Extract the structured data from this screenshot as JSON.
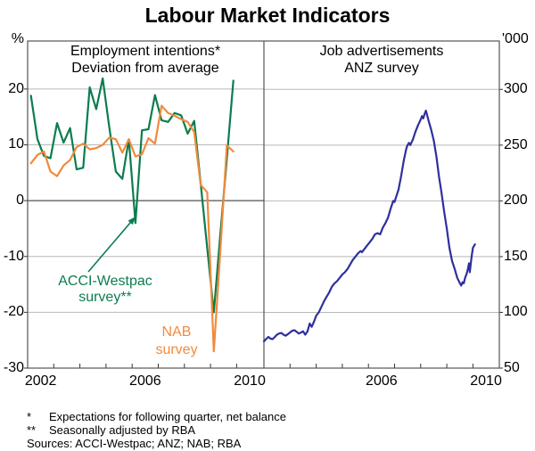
{
  "title": "Labour Market Indicators",
  "panels": {
    "left": {
      "heading1": "Employment intentions*",
      "heading2": "Deviation from average",
      "unit": "%",
      "y_tick_values": [
        20,
        10,
        0,
        -10,
        -20,
        -30
      ],
      "x_labels": [
        "2002",
        "2006",
        "2010"
      ],
      "x_label_years": [
        2002.5,
        2006.5,
        2010.5
      ]
    },
    "right": {
      "heading1": "Job advertisements",
      "heading2": "ANZ survey",
      "unit": "'000",
      "y_tick_values": [
        300,
        250,
        200,
        150,
        100,
        50
      ],
      "x_labels": [
        "2006",
        "2010"
      ],
      "x_label_years": [
        2006.5,
        2010.5
      ]
    }
  },
  "annotations": {
    "acci_line1": "ACCI-Westpac",
    "acci_line2": "survey**",
    "nab_line1": "NAB",
    "nab_line2": "survey"
  },
  "footnotes": [
    {
      "marker": "*",
      "text": "Expectations for following quarter, net balance"
    },
    {
      "marker": "**",
      "text": "Seasonally adjusted by RBA"
    }
  ],
  "sources": "Sources: ACCI-Westpac; ANZ; NAB; RBA",
  "colors": {
    "acci": "#0b7d4e",
    "nab": "#f18a3d",
    "anz": "#2f2f9f",
    "grid": "#b8b8b8",
    "zero": "#6e6e6e",
    "frame": "#555555",
    "tick": "#333333"
  },
  "chart_data": [
    {
      "type": "line",
      "panel": "left",
      "title": "Employment intentions, deviation from average (%)",
      "xlim": [
        2002,
        2011.04
      ],
      "ylim": [
        -30,
        28.6
      ],
      "grid_values": [
        20,
        10,
        -10,
        -20
      ],
      "zero_line": 0,
      "x_tick_years": [
        2003,
        2004,
        2005,
        2006,
        2007,
        2008,
        2009,
        2010
      ],
      "series": [
        {
          "name": "ACCI-Westpac survey**",
          "color_key": "acci",
          "x_start": 2002.125,
          "x_step": 0.25,
          "values": [
            18.8,
            11.0,
            8.0,
            7.6,
            13.9,
            10.4,
            13.0,
            5.6,
            5.9,
            20.3,
            16.4,
            21.9,
            13.1,
            5.2,
            3.9,
            11.0,
            -4.0,
            12.6,
            12.8,
            18.9,
            14.4,
            14.1,
            15.7,
            15.3,
            12.0,
            14.3,
            3.0,
            -8.5,
            -20.0,
            -6.0,
            7.5,
            21.5
          ]
        },
        {
          "name": "NAB survey",
          "color_key": "nab",
          "x_start": 2002.125,
          "x_step": 0.25,
          "values": [
            6.7,
            8.2,
            8.8,
            5.2,
            4.4,
            6.3,
            7.3,
            9.6,
            10.2,
            9.2,
            9.4,
            10.0,
            11.3,
            11.0,
            8.6,
            11.0,
            7.9,
            8.3,
            11.2,
            10.2,
            17.0,
            15.7,
            15.2,
            14.6,
            14.1,
            12.3,
            2.8,
            1.5,
            -27.0,
            -9.0,
            9.9,
            8.8
          ]
        }
      ]
    },
    {
      "type": "line",
      "panel": "right",
      "title": "Job advertisements, ANZ survey ('000)",
      "xlim": [
        2002,
        2011.01
      ],
      "ylim": [
        50,
        343.4
      ],
      "grid_values": [
        300,
        250,
        200,
        150,
        100
      ],
      "x_tick_years": [
        2003,
        2004,
        2005,
        2006,
        2007,
        2008,
        2009,
        2010
      ],
      "series": [
        {
          "name": "ANZ job advertisements",
          "color_key": "anz",
          "points": [
            [
              2002.0,
              74
            ],
            [
              2002.08,
              76
            ],
            [
              2002.17,
              78
            ],
            [
              2002.25,
              76.5
            ],
            [
              2002.33,
              76
            ],
            [
              2002.42,
              78
            ],
            [
              2002.5,
              80
            ],
            [
              2002.58,
              81
            ],
            [
              2002.67,
              81.5
            ],
            [
              2002.75,
              80
            ],
            [
              2002.83,
              79
            ],
            [
              2002.92,
              80.5
            ],
            [
              2003.0,
              82
            ],
            [
              2003.08,
              83.5
            ],
            [
              2003.17,
              84
            ],
            [
              2003.25,
              82.5
            ],
            [
              2003.33,
              81
            ],
            [
              2003.42,
              82
            ],
            [
              2003.5,
              83
            ],
            [
              2003.58,
              80
            ],
            [
              2003.67,
              83
            ],
            [
              2003.75,
              90
            ],
            [
              2003.83,
              87
            ],
            [
              2003.92,
              92
            ],
            [
              2004.0,
              97
            ],
            [
              2004.1,
              100
            ],
            [
              2004.2,
              105
            ],
            [
              2004.3,
              110
            ],
            [
              2004.4,
              114
            ],
            [
              2004.5,
              118
            ],
            [
              2004.6,
              123
            ],
            [
              2004.7,
              126
            ],
            [
              2004.8,
              128
            ],
            [
              2004.9,
              131
            ],
            [
              2005.0,
              134
            ],
            [
              2005.1,
              136
            ],
            [
              2005.2,
              139
            ],
            [
              2005.3,
              143
            ],
            [
              2005.4,
              147
            ],
            [
              2005.5,
              150
            ],
            [
              2005.6,
              153
            ],
            [
              2005.7,
              155
            ],
            [
              2005.75,
              154
            ],
            [
              2005.85,
              157
            ],
            [
              2005.95,
              160
            ],
            [
              2006.05,
              163
            ],
            [
              2006.15,
              166
            ],
            [
              2006.25,
              170
            ],
            [
              2006.35,
              171
            ],
            [
              2006.45,
              170
            ],
            [
              2006.55,
              176
            ],
            [
              2006.65,
              180
            ],
            [
              2006.75,
              185
            ],
            [
              2006.85,
              193
            ],
            [
              2006.95,
              200
            ],
            [
              2007.0,
              199
            ],
            [
              2007.05,
              203
            ],
            [
              2007.15,
              210
            ],
            [
              2007.25,
              222
            ],
            [
              2007.35,
              236
            ],
            [
              2007.45,
              247
            ],
            [
              2007.5,
              250
            ],
            [
              2007.55,
              252
            ],
            [
              2007.6,
              250
            ],
            [
              2007.7,
              255
            ],
            [
              2007.8,
              262
            ],
            [
              2007.9,
              268
            ],
            [
              2008.0,
              273
            ],
            [
              2008.05,
              276
            ],
            [
              2008.1,
              274
            ],
            [
              2008.15,
              278
            ],
            [
              2008.2,
              281
            ],
            [
              2008.3,
              272
            ],
            [
              2008.4,
              264
            ],
            [
              2008.5,
              254
            ],
            [
              2008.6,
              240
            ],
            [
              2008.7,
              222
            ],
            [
              2008.8,
              207
            ],
            [
              2008.9,
              190
            ],
            [
              2009.0,
              175
            ],
            [
              2009.1,
              158
            ],
            [
              2009.2,
              146
            ],
            [
              2009.3,
              139
            ],
            [
              2009.4,
              131
            ],
            [
              2009.5,
              126
            ],
            [
              2009.55,
              124
            ],
            [
              2009.6,
              127
            ],
            [
              2009.65,
              126
            ],
            [
              2009.7,
              131
            ],
            [
              2009.75,
              134
            ],
            [
              2009.8,
              138
            ],
            [
              2009.85,
              144
            ],
            [
              2009.88,
              136
            ],
            [
              2009.95,
              150
            ],
            [
              2010.0,
              158
            ],
            [
              2010.08,
              161
            ]
          ]
        }
      ]
    }
  ]
}
